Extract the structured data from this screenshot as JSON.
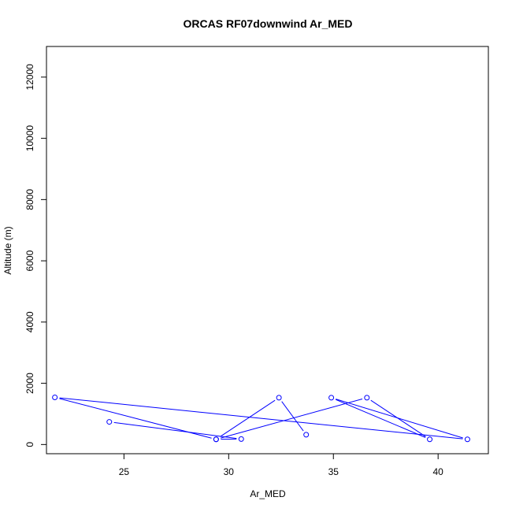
{
  "chart_data": {
    "type": "line",
    "title": "ORCAS RF07downwind Ar_MED",
    "xlabel": "Ar_MED",
    "ylabel": "Altitude (m)",
    "xlim": [
      21.3,
      42.4
    ],
    "ylim": [
      -300,
      13000
    ],
    "x_ticks": [
      25,
      30,
      35,
      40
    ],
    "x_tick_labels": [
      "25",
      "30",
      "35",
      "40"
    ],
    "y_ticks": [
      0,
      2000,
      4000,
      6000,
      8000,
      10000,
      12000
    ],
    "y_tick_labels": [
      "0",
      "2000",
      "4000",
      "6000",
      "8000",
      "10000",
      "12000"
    ],
    "grid": false,
    "series": [
      {
        "color": "#0000ff",
        "marker": "open-circle",
        "points": [
          {
            "x": 24.3,
            "y": 740
          },
          {
            "x": 30.6,
            "y": 180
          },
          {
            "x": 29.4,
            "y": 170
          },
          {
            "x": 36.6,
            "y": 1530
          },
          {
            "x": 39.6,
            "y": 170
          },
          {
            "x": 34.9,
            "y": 1530
          },
          {
            "x": 41.4,
            "y": 170
          },
          {
            "x": 21.7,
            "y": 1540
          },
          {
            "x": 29.4,
            "y": 170
          },
          {
            "x": 32.4,
            "y": 1530
          },
          {
            "x": 33.7,
            "y": 320
          }
        ]
      }
    ]
  }
}
